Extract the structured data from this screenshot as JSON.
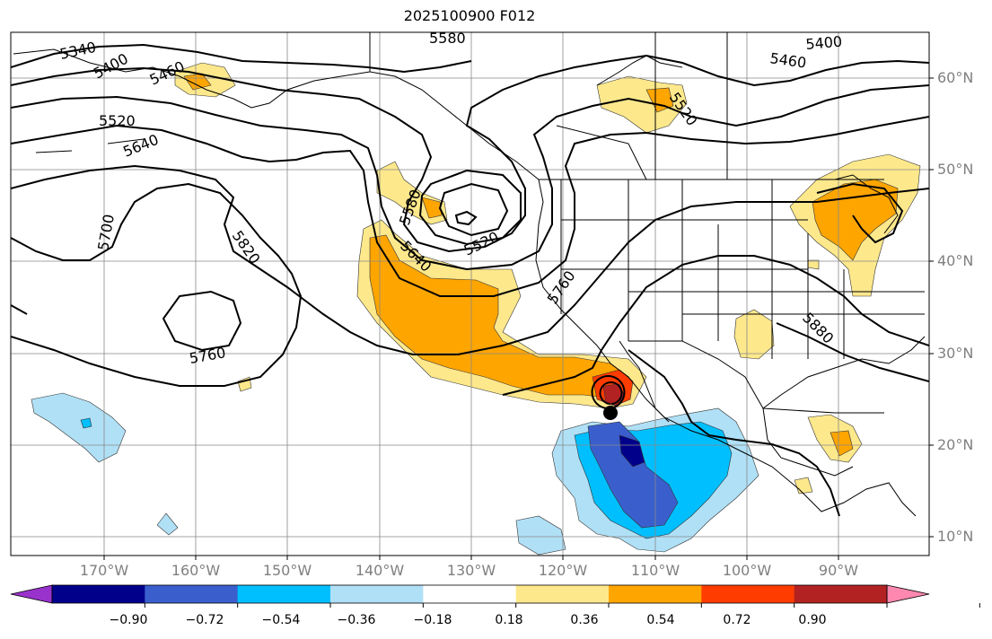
{
  "title": "2025100900 F012",
  "chart_data": {
    "type": "map",
    "title": "2025100900 F012",
    "latitude_labels": [
      "60°N",
      "50°N",
      "40°N",
      "30°N",
      "20°N",
      "10°N"
    ],
    "longitude_labels": [
      "170°W",
      "160°W",
      "150°W",
      "140°W",
      "130°W",
      "120°W",
      "110°W",
      "100°W",
      "90°W"
    ],
    "contour_labels": [
      "5340",
      "5400",
      "5460",
      "5520",
      "5580",
      "5640",
      "5700",
      "5760",
      "5820",
      "5880"
    ],
    "contour_annotations": [
      "5340",
      "5400",
      "5460",
      "5520",
      "5640",
      "5700",
      "5820",
      "5760",
      "5580",
      "5580",
      "5640",
      "5520",
      "5760",
      "5880",
      "5400",
      "5460",
      "5520"
    ],
    "colorbar": {
      "ticks": [
        "−0.90",
        "−0.72",
        "−0.54",
        "−0.36",
        "−0.18",
        "0.18",
        "0.36",
        "0.54",
        "0.72",
        "0.90"
      ],
      "colors": [
        "#9932cc",
        "#00008b",
        "#3a5fcd",
        "#00bfff",
        "#b0e0f6",
        "#ffffff",
        "#fde88c",
        "#ffa500",
        "#ff3c00",
        "#b22222",
        "#ff88b0"
      ]
    }
  }
}
